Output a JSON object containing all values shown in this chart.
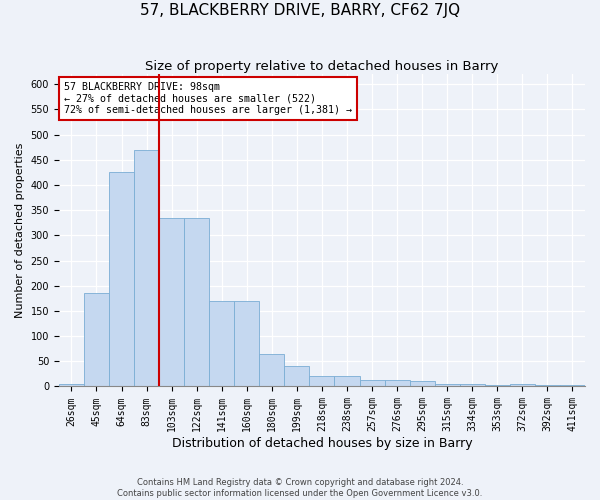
{
  "title": "57, BLACKBERRY DRIVE, BARRY, CF62 7JQ",
  "subtitle": "Size of property relative to detached houses in Barry",
  "xlabel": "Distribution of detached houses by size in Barry",
  "ylabel": "Number of detached properties",
  "categories": [
    "26sqm",
    "45sqm",
    "64sqm",
    "83sqm",
    "103sqm",
    "122sqm",
    "141sqm",
    "160sqm",
    "180sqm",
    "199sqm",
    "218sqm",
    "238sqm",
    "257sqm",
    "276sqm",
    "295sqm",
    "315sqm",
    "334sqm",
    "353sqm",
    "372sqm",
    "392sqm",
    "411sqm"
  ],
  "values": [
    5,
    185,
    425,
    470,
    335,
    335,
    170,
    170,
    65,
    40,
    20,
    20,
    12,
    12,
    10,
    5,
    5,
    3,
    5,
    3,
    3
  ],
  "bar_color": "#c5d8f0",
  "bar_edge_color": "#7aadd4",
  "vline_color": "#cc0000",
  "annotation_text": "57 BLACKBERRY DRIVE: 98sqm\n← 27% of detached houses are smaller (522)\n72% of semi-detached houses are larger (1,381) →",
  "annotation_box_color": "white",
  "annotation_box_edge": "#cc0000",
  "ylim": [
    0,
    620
  ],
  "yticks": [
    0,
    50,
    100,
    150,
    200,
    250,
    300,
    350,
    400,
    450,
    500,
    550,
    600
  ],
  "footer_line1": "Contains HM Land Registry data © Crown copyright and database right 2024.",
  "footer_line2": "Contains public sector information licensed under the Open Government Licence v3.0.",
  "bg_color": "#eef2f9",
  "grid_color": "white",
  "title_fontsize": 11,
  "subtitle_fontsize": 9.5,
  "tick_fontsize": 7,
  "ylabel_fontsize": 8,
  "xlabel_fontsize": 9
}
